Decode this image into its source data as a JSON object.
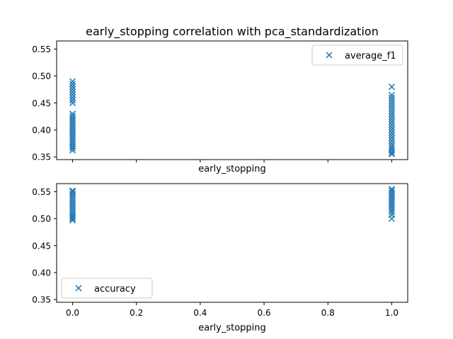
{
  "chart_data": {
    "type": "scatter",
    "title": "early_stopping correlation with pca_standardization",
    "marker": "x",
    "marker_color": "#1f77b4",
    "xlim": [
      -0.05,
      1.05
    ],
    "xticks": [
      0.0,
      0.2,
      0.4,
      0.6,
      0.8,
      1.0
    ],
    "xtick_labels": [
      "0.0",
      "0.2",
      "0.4",
      "0.6",
      "0.8",
      "1.0"
    ],
    "panels": [
      {
        "xlabel": "early_stopping",
        "ylim": [
          0.345,
          0.565
        ],
        "yticks": [
          0.35,
          0.4,
          0.45,
          0.5,
          0.55
        ],
        "ytick_labels": [
          "0.35",
          "0.40",
          "0.45",
          "0.50",
          "0.55"
        ],
        "show_xtick_labels": false,
        "legend": {
          "label": "average_f1",
          "placement": "upper right"
        },
        "series": [
          {
            "name": "average_f1",
            "points": [
              [
                0,
                0.362
              ],
              [
                0,
                0.366
              ],
              [
                0,
                0.37
              ],
              [
                0,
                0.374
              ],
              [
                0,
                0.378
              ],
              [
                0,
                0.382
              ],
              [
                0,
                0.386
              ],
              [
                0,
                0.39
              ],
              [
                0,
                0.394
              ],
              [
                0,
                0.398
              ],
              [
                0,
                0.402
              ],
              [
                0,
                0.406
              ],
              [
                0,
                0.41
              ],
              [
                0,
                0.414
              ],
              [
                0,
                0.418
              ],
              [
                0,
                0.422
              ],
              [
                0,
                0.426
              ],
              [
                0,
                0.43
              ],
              [
                0,
                0.45
              ],
              [
                0,
                0.455
              ],
              [
                0,
                0.46
              ],
              [
                0,
                0.465
              ],
              [
                0,
                0.47
              ],
              [
                0,
                0.475
              ],
              [
                0,
                0.48
              ],
              [
                0,
                0.485
              ],
              [
                0,
                0.49
              ],
              [
                1,
                0.355
              ],
              [
                1,
                0.358
              ],
              [
                1,
                0.362
              ],
              [
                1,
                0.366
              ],
              [
                1,
                0.37
              ],
              [
                1,
                0.375
              ],
              [
                1,
                0.38
              ],
              [
                1,
                0.385
              ],
              [
                1,
                0.39
              ],
              [
                1,
                0.395
              ],
              [
                1,
                0.4
              ],
              [
                1,
                0.405
              ],
              [
                1,
                0.41
              ],
              [
                1,
                0.415
              ],
              [
                1,
                0.42
              ],
              [
                1,
                0.425
              ],
              [
                1,
                0.43
              ],
              [
                1,
                0.435
              ],
              [
                1,
                0.44
              ],
              [
                1,
                0.445
              ],
              [
                1,
                0.45
              ],
              [
                1,
                0.455
              ],
              [
                1,
                0.46
              ],
              [
                1,
                0.465
              ],
              [
                1,
                0.48
              ]
            ]
          }
        ]
      },
      {
        "xlabel": "early_stopping",
        "ylim": [
          0.345,
          0.565
        ],
        "yticks": [
          0.35,
          0.4,
          0.45,
          0.5,
          0.55
        ],
        "ytick_labels": [
          "0.35",
          "0.40",
          "0.45",
          "0.50",
          "0.55"
        ],
        "show_xtick_labels": true,
        "legend": {
          "label": "accuracy",
          "placement": "lower left"
        },
        "series": [
          {
            "name": "accuracy",
            "points": [
              [
                0,
                0.497
              ],
              [
                0,
                0.5
              ],
              [
                0,
                0.503
              ],
              [
                0,
                0.506
              ],
              [
                0,
                0.51
              ],
              [
                0,
                0.514
              ],
              [
                0,
                0.518
              ],
              [
                0,
                0.522
              ],
              [
                0,
                0.526
              ],
              [
                0,
                0.53
              ],
              [
                0,
                0.534
              ],
              [
                0,
                0.538
              ],
              [
                0,
                0.542
              ],
              [
                0,
                0.546
              ],
              [
                0,
                0.55
              ],
              [
                0,
                0.552
              ],
              [
                1,
                0.5
              ],
              [
                1,
                0.507
              ],
              [
                1,
                0.512
              ],
              [
                1,
                0.516
              ],
              [
                1,
                0.52
              ],
              [
                1,
                0.524
              ],
              [
                1,
                0.528
              ],
              [
                1,
                0.532
              ],
              [
                1,
                0.536
              ],
              [
                1,
                0.54
              ],
              [
                1,
                0.544
              ],
              [
                1,
                0.548
              ],
              [
                1,
                0.552
              ],
              [
                1,
                0.555
              ]
            ]
          }
        ]
      }
    ]
  }
}
